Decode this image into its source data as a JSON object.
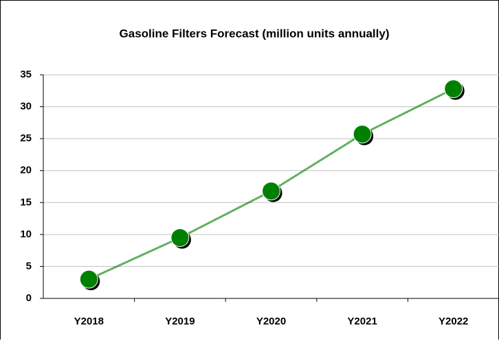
{
  "chart_data": {
    "type": "line",
    "title": "Gasoline Filters Forecast (million units annually)",
    "categories": [
      "Y2018",
      "Y2019",
      "Y2020",
      "Y2021",
      "Y2022"
    ],
    "series": [
      {
        "name": "Gasoline Filters",
        "color": "#008000",
        "values": [
          3.0,
          9.5,
          16.8,
          25.7,
          32.8
        ]
      }
    ],
    "ylim": [
      0,
      35
    ],
    "yticks": [
      0,
      5,
      10,
      15,
      20,
      25,
      30,
      35
    ],
    "grid": true
  }
}
